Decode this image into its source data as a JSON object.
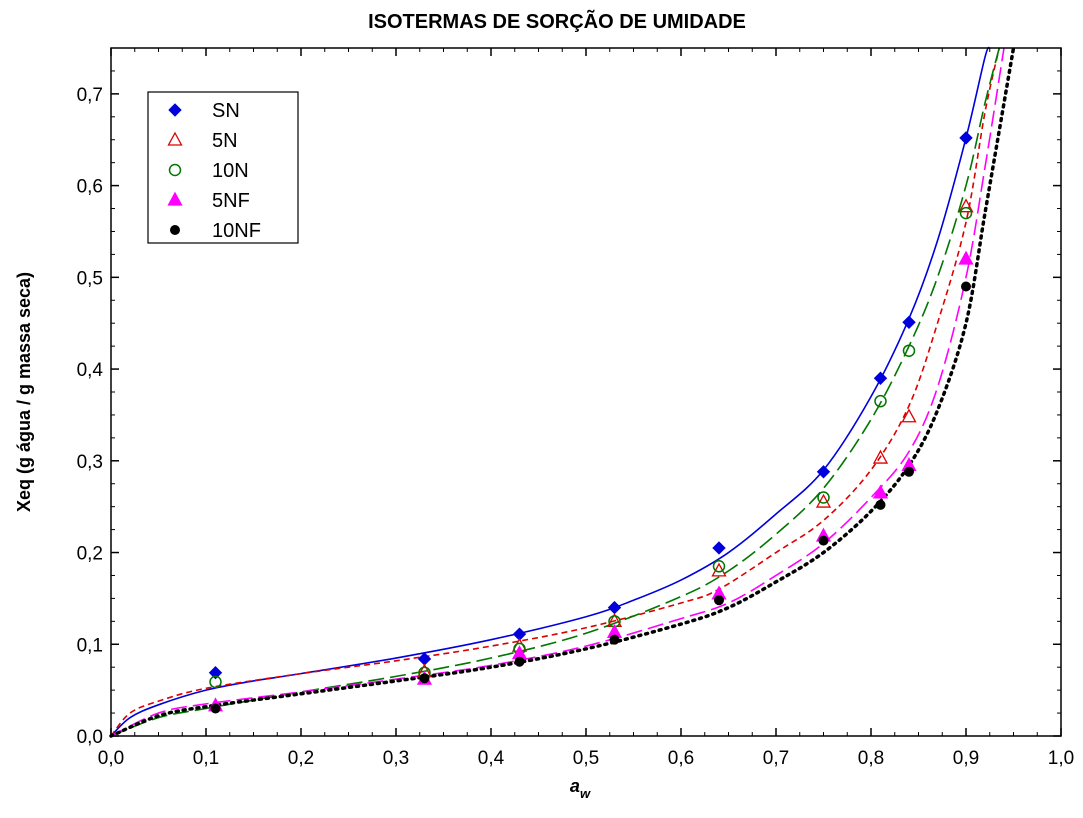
{
  "chart_data": {
    "type": "scatter",
    "title": "ISOTERMAS DE SORÇÃO DE UMIDADE",
    "xlabel_main": "a",
    "xlabel_sub": "w",
    "ylabel": "Xeq (g água / g massa seca)",
    "xlim": [
      0,
      1.0
    ],
    "ylim": [
      0,
      0.75
    ],
    "x_ticks": [
      "0,0",
      "0,1",
      "0,2",
      "0,3",
      "0,4",
      "0,5",
      "0,6",
      "0,7",
      "0,8",
      "0,9",
      "1,0"
    ],
    "y_ticks": [
      "0,0",
      "0,1",
      "0,2",
      "0,3",
      "0,4",
      "0,5",
      "0,6",
      "0,7"
    ],
    "legend_position": "top-left",
    "series": [
      {
        "name": "SN",
        "marker": "diamond",
        "color": "#0000dd",
        "line": "solid",
        "x": [
          0.11,
          0.33,
          0.43,
          0.53,
          0.64,
          0.75,
          0.81,
          0.84,
          0.9
        ],
        "y": [
          0.069,
          0.084,
          0.111,
          0.14,
          0.205,
          0.288,
          0.39,
          0.451,
          0.652
        ],
        "fit": [
          [
            0.0,
            0.0
          ],
          [
            0.02,
            0.02
          ],
          [
            0.05,
            0.034
          ],
          [
            0.1,
            0.05
          ],
          [
            0.15,
            0.06
          ],
          [
            0.2,
            0.068
          ],
          [
            0.3,
            0.085
          ],
          [
            0.4,
            0.105
          ],
          [
            0.5,
            0.13
          ],
          [
            0.55,
            0.148
          ],
          [
            0.6,
            0.17
          ],
          [
            0.65,
            0.2
          ],
          [
            0.7,
            0.242
          ],
          [
            0.75,
            0.29
          ],
          [
            0.8,
            0.37
          ],
          [
            0.84,
            0.455
          ],
          [
            0.87,
            0.54
          ],
          [
            0.9,
            0.652
          ],
          [
            0.92,
            0.74
          ],
          [
            0.925,
            0.75
          ]
        ]
      },
      {
        "name": "5N",
        "marker": "triangle-open",
        "color": "#dd0000",
        "line": "short-dash",
        "x": [
          0.33,
          0.43,
          0.53,
          0.64,
          0.75,
          0.81,
          0.84,
          0.9
        ],
        "y": [
          0.07,
          0.098,
          0.125,
          0.18,
          0.255,
          0.303,
          0.348,
          0.577
        ],
        "fit": [
          [
            0.0,
            0.0
          ],
          [
            0.02,
            0.025
          ],
          [
            0.05,
            0.038
          ],
          [
            0.1,
            0.052
          ],
          [
            0.2,
            0.068
          ],
          [
            0.3,
            0.082
          ],
          [
            0.4,
            0.098
          ],
          [
            0.5,
            0.118
          ],
          [
            0.6,
            0.145
          ],
          [
            0.64,
            0.16
          ],
          [
            0.7,
            0.2
          ],
          [
            0.75,
            0.235
          ],
          [
            0.8,
            0.29
          ],
          [
            0.84,
            0.36
          ],
          [
            0.87,
            0.45
          ],
          [
            0.9,
            0.56
          ],
          [
            0.92,
            0.68
          ],
          [
            0.935,
            0.75
          ]
        ]
      },
      {
        "name": "10N",
        "marker": "circle-open",
        "color": "#007700",
        "line": "long-dash",
        "x": [
          0.11,
          0.33,
          0.43,
          0.53,
          0.64,
          0.75,
          0.81,
          0.84,
          0.9
        ],
        "y": [
          0.059,
          0.069,
          0.095,
          0.125,
          0.185,
          0.26,
          0.365,
          0.42,
          0.57
        ],
        "fit": [
          [
            0.0,
            0.0
          ],
          [
            0.05,
            0.02
          ],
          [
            0.1,
            0.03
          ],
          [
            0.2,
            0.048
          ],
          [
            0.3,
            0.065
          ],
          [
            0.4,
            0.085
          ],
          [
            0.5,
            0.112
          ],
          [
            0.6,
            0.152
          ],
          [
            0.65,
            0.18
          ],
          [
            0.7,
            0.22
          ],
          [
            0.75,
            0.27
          ],
          [
            0.8,
            0.345
          ],
          [
            0.84,
            0.425
          ],
          [
            0.87,
            0.5
          ],
          [
            0.9,
            0.6
          ],
          [
            0.92,
            0.69
          ],
          [
            0.935,
            0.75
          ]
        ]
      },
      {
        "name": "5NF",
        "marker": "triangle-filled",
        "color": "#ff00ff",
        "line": "long-dash",
        "x": [
          0.11,
          0.33,
          0.43,
          0.53,
          0.64,
          0.75,
          0.81,
          0.84,
          0.9
        ],
        "y": [
          0.033,
          0.062,
          0.09,
          0.113,
          0.155,
          0.218,
          0.265,
          0.295,
          0.52
        ],
        "fit": [
          [
            0.0,
            0.0
          ],
          [
            0.05,
            0.025
          ],
          [
            0.1,
            0.035
          ],
          [
            0.2,
            0.048
          ],
          [
            0.3,
            0.062
          ],
          [
            0.4,
            0.077
          ],
          [
            0.5,
            0.098
          ],
          [
            0.6,
            0.128
          ],
          [
            0.65,
            0.145
          ],
          [
            0.7,
            0.175
          ],
          [
            0.75,
            0.21
          ],
          [
            0.8,
            0.26
          ],
          [
            0.84,
            0.31
          ],
          [
            0.87,
            0.38
          ],
          [
            0.9,
            0.5
          ],
          [
            0.92,
            0.62
          ],
          [
            0.94,
            0.75
          ]
        ]
      },
      {
        "name": "10NF",
        "marker": "circle-filled",
        "color": "#000000",
        "line": "dotted",
        "x": [
          0.11,
          0.33,
          0.43,
          0.53,
          0.64,
          0.75,
          0.81,
          0.84,
          0.9
        ],
        "y": [
          0.03,
          0.063,
          0.081,
          0.105,
          0.148,
          0.213,
          0.252,
          0.288,
          0.49
        ],
        "fit": [
          [
            0.0,
            0.0
          ],
          [
            0.05,
            0.022
          ],
          [
            0.1,
            0.032
          ],
          [
            0.2,
            0.046
          ],
          [
            0.3,
            0.06
          ],
          [
            0.4,
            0.075
          ],
          [
            0.5,
            0.095
          ],
          [
            0.6,
            0.122
          ],
          [
            0.65,
            0.14
          ],
          [
            0.7,
            0.168
          ],
          [
            0.75,
            0.2
          ],
          [
            0.8,
            0.245
          ],
          [
            0.84,
            0.295
          ],
          [
            0.87,
            0.355
          ],
          [
            0.9,
            0.45
          ],
          [
            0.92,
            0.57
          ],
          [
            0.94,
            0.69
          ],
          [
            0.95,
            0.75
          ]
        ]
      }
    ]
  }
}
